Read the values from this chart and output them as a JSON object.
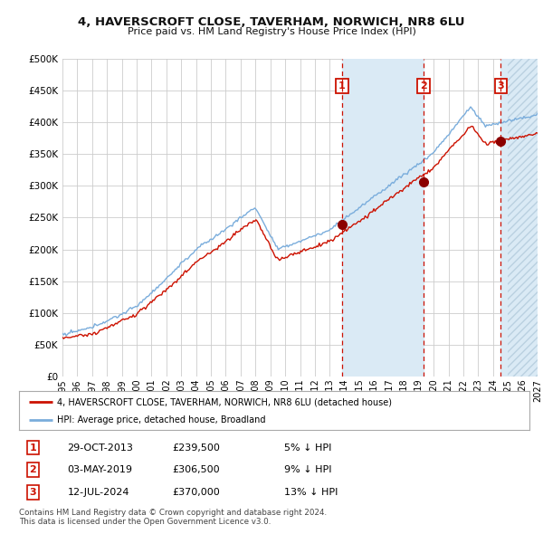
{
  "title": "4, HAVERSCROFT CLOSE, TAVERHAM, NORWICH, NR8 6LU",
  "subtitle": "Price paid vs. HM Land Registry's House Price Index (HPI)",
  "ylim": [
    0,
    500000
  ],
  "yticks": [
    0,
    50000,
    100000,
    150000,
    200000,
    250000,
    300000,
    350000,
    400000,
    450000,
    500000
  ],
  "ytick_labels": [
    "£0",
    "£50K",
    "£100K",
    "£150K",
    "£200K",
    "£250K",
    "£300K",
    "£350K",
    "£400K",
    "£450K",
    "£500K"
  ],
  "hpi_color": "#7aaddc",
  "price_color": "#cc1100",
  "bg_color": "#ffffff",
  "grid_color": "#cccccc",
  "sale1_date": 2013.83,
  "sale1_price": 239500,
  "sale2_date": 2019.33,
  "sale2_price": 306500,
  "sale3_date": 2024.53,
  "sale3_price": 370000,
  "xlim_start": 1995.0,
  "xlim_end": 2027.0,
  "legend_property": "4, HAVERSCROFT CLOSE, TAVERHAM, NORWICH, NR8 6LU (detached house)",
  "legend_hpi": "HPI: Average price, detached house, Broadland",
  "table_rows": [
    [
      "1",
      "29-OCT-2013",
      "£239,500",
      "5% ↓ HPI"
    ],
    [
      "2",
      "03-MAY-2019",
      "£306,500",
      "9% ↓ HPI"
    ],
    [
      "3",
      "12-JUL-2024",
      "£370,000",
      "13% ↓ HPI"
    ]
  ],
  "footer1": "Contains HM Land Registry data © Crown copyright and database right 2024.",
  "footer2": "This data is licensed under the Open Government Licence v3.0.",
  "sale_vline_color": "#cc1100",
  "highlight_color": "#daeaf5",
  "hatch_color": "#b0c8d8"
}
